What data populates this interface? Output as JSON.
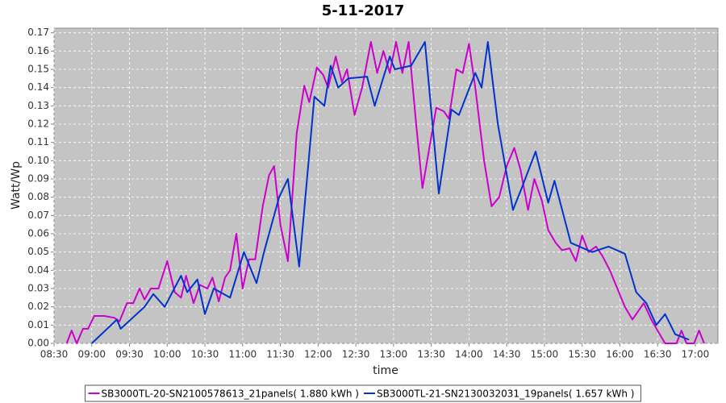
{
  "chart_data": {
    "type": "line",
    "title": "5-11-2017",
    "x_label": "time",
    "y_label": "Watt/Wp",
    "xlim": [
      "08:30",
      "17:18"
    ],
    "xticks": [
      "08:30",
      "09:00",
      "09:30",
      "10:00",
      "10:30",
      "11:00",
      "11:30",
      "12:00",
      "12:30",
      "13:00",
      "13:30",
      "14:00",
      "14:30",
      "15:00",
      "15:30",
      "16:00",
      "16:30",
      "17:00"
    ],
    "ylim": [
      0,
      0.1725
    ],
    "yticks": [
      {
        "value": 0,
        "label": "0.00"
      },
      {
        "value": 0.01,
        "label": "0.01"
      },
      {
        "value": 0.02,
        "label": "0.02"
      },
      {
        "value": 0.03,
        "label": "0.03"
      },
      {
        "value": 0.04,
        "label": "0.04"
      },
      {
        "value": 0.05,
        "label": "0.05"
      },
      {
        "value": 0.06,
        "label": "0.06"
      },
      {
        "value": 0.07,
        "label": "0.07"
      },
      {
        "value": 0.08,
        "label": "0.08"
      },
      {
        "value": 0.09,
        "label": "0.09"
      },
      {
        "value": 0.1,
        "label": "0.10"
      },
      {
        "value": 0.11,
        "label": "0.11"
      },
      {
        "value": 0.12,
        "label": "0.12"
      },
      {
        "value": 0.13,
        "label": "0.13"
      },
      {
        "value": 0.14,
        "label": "0.14"
      },
      {
        "value": 0.15,
        "label": "0.15"
      },
      {
        "value": 0.16,
        "label": "0.16"
      },
      {
        "value": 0.17,
        "label": "0.17"
      }
    ],
    "grid": true,
    "legend": "bottom",
    "series": [
      {
        "name": "SB3000TL-20-SN2100578613_21panels( 1.880 kWh )",
        "color": "#cc00cc",
        "x": [
          "08:40",
          "08:44",
          "08:48",
          "08:53",
          "08:57",
          "09:02",
          "09:10",
          "09:18",
          "09:22",
          "09:28",
          "09:33",
          "09:38",
          "09:42",
          "09:47",
          "09:53",
          "10:00",
          "10:06",
          "10:11",
          "10:15",
          "10:21",
          "10:26",
          "10:32",
          "10:36",
          "10:41",
          "10:46",
          "10:50",
          "10:55",
          "11:00",
          "11:05",
          "11:10",
          "11:16",
          "11:21",
          "11:25",
          "11:30",
          "11:36",
          "11:43",
          "11:49",
          "11:53",
          "11:59",
          "12:04",
          "12:08",
          "12:14",
          "12:19",
          "12:23",
          "12:29",
          "12:35",
          "12:42",
          "12:47",
          "12:52",
          "12:57",
          "13:02",
          "13:07",
          "13:12",
          "13:18",
          "13:23",
          "13:28",
          "13:34",
          "13:40",
          "13:44",
          "13:50",
          "13:55",
          "14:00",
          "14:05",
          "14:12",
          "14:18",
          "14:24",
          "14:30",
          "14:36",
          "14:41",
          "14:47",
          "14:52",
          "14:58",
          "15:03",
          "15:09",
          "15:14",
          "15:20",
          "15:25",
          "15:30",
          "15:35",
          "15:41",
          "15:46",
          "15:52",
          "15:58",
          "16:04",
          "16:10",
          "16:15",
          "16:19",
          "16:25",
          "16:30",
          "16:36",
          "16:45",
          "16:49",
          "16:53",
          "16:59",
          "17:03",
          "17:07"
        ],
        "values": [
          0,
          0.007,
          0,
          0.008,
          0.008,
          0.015,
          0.015,
          0.014,
          0.012,
          0.022,
          0.022,
          0.03,
          0.024,
          0.03,
          0.03,
          0.045,
          0.028,
          0.025,
          0.037,
          0.022,
          0.032,
          0.03,
          0.036,
          0.023,
          0.036,
          0.04,
          0.06,
          0.03,
          0.046,
          0.046,
          0.075,
          0.092,
          0.097,
          0.065,
          0.045,
          0.115,
          0.141,
          0.132,
          0.151,
          0.147,
          0.14,
          0.157,
          0.143,
          0.15,
          0.125,
          0.14,
          0.165,
          0.148,
          0.16,
          0.148,
          0.165,
          0.148,
          0.165,
          0.12,
          0.085,
          0.105,
          0.129,
          0.127,
          0.123,
          0.15,
          0.148,
          0.164,
          0.14,
          0.1,
          0.075,
          0.08,
          0.097,
          0.107,
          0.095,
          0.073,
          0.09,
          0.078,
          0.062,
          0.055,
          0.051,
          0.052,
          0.045,
          0.059,
          0.05,
          0.053,
          0.048,
          0.04,
          0.03,
          0.02,
          0.013,
          0.018,
          0.022,
          0.013,
          0.007,
          0,
          0,
          0.007,
          0,
          0,
          0.007,
          0
        ]
      },
      {
        "name": "SB3000TL-21-SN2130032031_19panels( 1.657 kWh )",
        "color": "#0033cc",
        "x": [
          "09:00",
          "09:20",
          "09:23",
          "09:42",
          "09:49",
          "09:58",
          "10:11",
          "10:16",
          "10:24",
          "10:30",
          "10:37",
          "10:50",
          "11:01",
          "11:11",
          "11:17",
          "11:29",
          "11:36",
          "11:45",
          "11:57",
          "12:05",
          "12:10",
          "12:16",
          "12:24",
          "12:39",
          "12:45",
          "12:57",
          "13:01",
          "13:14",
          "13:25",
          "13:36",
          "13:46",
          "13:52",
          "14:05",
          "14:10",
          "14:15",
          "14:23",
          "14:35",
          "14:42",
          "14:53",
          "15:03",
          "15:08",
          "15:21",
          "15:38",
          "15:51",
          "16:04",
          "16:13",
          "16:21",
          "16:29",
          "16:36",
          "16:44",
          "16:55"
        ],
        "values": [
          0,
          0.013,
          0.008,
          0.02,
          0.027,
          0.02,
          0.037,
          0.028,
          0.035,
          0.016,
          0.03,
          0.025,
          0.05,
          0.033,
          0.05,
          0.08,
          0.09,
          0.042,
          0.135,
          0.13,
          0.152,
          0.14,
          0.145,
          0.146,
          0.13,
          0.157,
          0.15,
          0.152,
          0.165,
          0.082,
          0.128,
          0.125,
          0.148,
          0.14,
          0.165,
          0.12,
          0.073,
          0.085,
          0.105,
          0.077,
          0.089,
          0.055,
          0.05,
          0.053,
          0.049,
          0.028,
          0.022,
          0.01,
          0.016,
          0.005,
          0.002
        ]
      }
    ]
  }
}
